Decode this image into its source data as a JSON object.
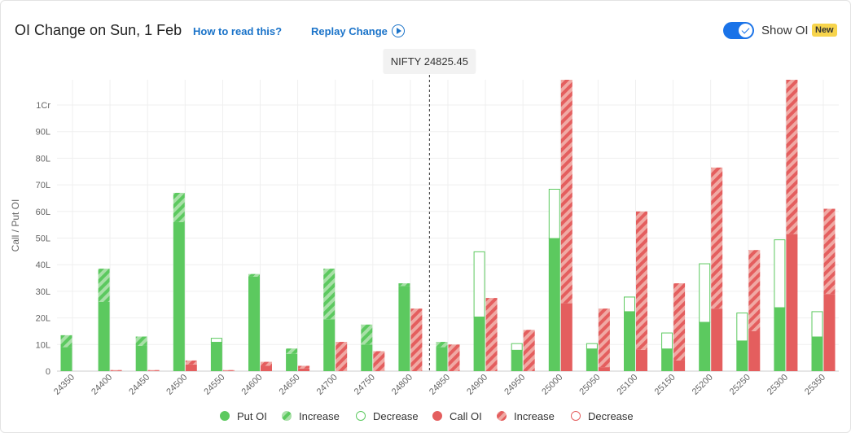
{
  "header": {
    "title": "OI Change on Sun, 1 Feb",
    "how_to_read": "How to read this?",
    "replay": "Replay Change",
    "show_oi": "Show OI",
    "new_badge": "New"
  },
  "spot": {
    "label": "NIFTY 24825.45",
    "value": 24825.45
  },
  "colors": {
    "put": "#5cc95f",
    "put_light": "#a8e0a7",
    "call": "#e45e5e",
    "call_light": "#f0a9a4",
    "grid": "#efefef",
    "axis_text": "#666666"
  },
  "chart_data": {
    "type": "bar",
    "ylabel": "Call / Put OI",
    "ylim": [
      0,
      11000000
    ],
    "y_ticks": [
      0,
      1000000,
      2000000,
      3000000,
      4000000,
      5000000,
      6000000,
      7000000,
      8000000,
      9000000,
      10000000
    ],
    "y_tick_labels": [
      "0",
      "10L",
      "20L",
      "30L",
      "40L",
      "50L",
      "60L",
      "70L",
      "80L",
      "90L",
      "1Cr"
    ],
    "categories": [
      "24350",
      "24400",
      "24450",
      "24500",
      "24550",
      "24600",
      "24650",
      "24700",
      "24750",
      "24800",
      "24850",
      "24900",
      "24950",
      "25000",
      "25050",
      "25100",
      "25150",
      "25200",
      "25250",
      "25300",
      "25350"
    ],
    "put": {
      "oi": [
        900000,
        2600000,
        950000,
        5600000,
        1100000,
        3550000,
        650000,
        1950000,
        1000000,
        3200000,
        900000,
        2050000,
        800000,
        5000000,
        850000,
        2250000,
        850000,
        1850000,
        1150000,
        2400000,
        1300000
      ],
      "increase": [
        450000,
        1250000,
        350000,
        1100000,
        0,
        100000,
        200000,
        1900000,
        750000,
        100000,
        200000,
        0,
        0,
        0,
        0,
        0,
        0,
        0,
        0,
        0,
        0
      ],
      "decrease": [
        0,
        0,
        0,
        0,
        150000,
        0,
        0,
        0,
        0,
        0,
        0,
        2450000,
        250000,
        1850000,
        200000,
        550000,
        600000,
        2200000,
        1050000,
        2550000,
        950000
      ]
    },
    "call": {
      "oi": [
        0,
        20000,
        20000,
        250000,
        20000,
        200000,
        100000,
        0,
        0,
        0,
        0,
        0,
        0,
        2550000,
        150000,
        800000,
        400000,
        2350000,
        1500000,
        5150000,
        2900000
      ],
      "increase": [
        0,
        20000,
        20000,
        150000,
        20000,
        150000,
        100000,
        1100000,
        750000,
        2350000,
        1000000,
        2750000,
        1550000,
        11350000,
        2200000,
        5200000,
        2900000,
        5300000,
        3050000,
        5850000,
        3200000
      ],
      "decrease": [
        0,
        0,
        0,
        0,
        0,
        0,
        0,
        0,
        0,
        0,
        0,
        0,
        0,
        0,
        0,
        0,
        0,
        0,
        0,
        0,
        0
      ]
    },
    "legend": [
      "Put OI",
      "Increase",
      "Decrease",
      "Call OI",
      "Increase",
      "Decrease"
    ],
    "legend_position": "bottom",
    "grid": true
  }
}
